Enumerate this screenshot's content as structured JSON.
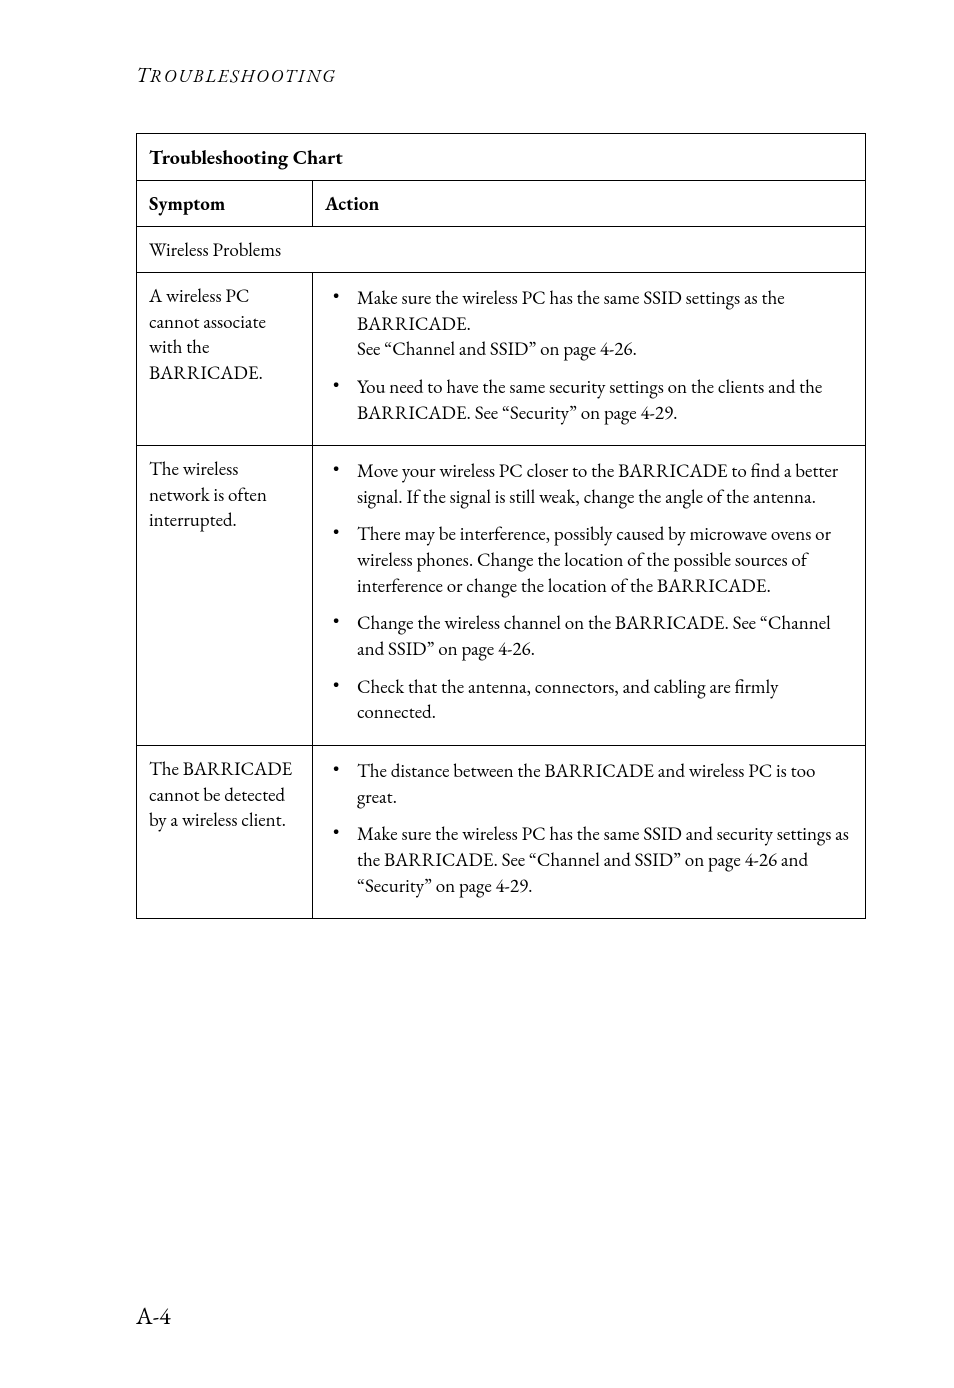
{
  "running_head_first": "T",
  "running_head_rest": "ROUBLESHOOTING",
  "chart_title": "Troubleshooting Chart",
  "col_symptom": "Symptom",
  "col_action": "Action",
  "section_wireless": "Wireless Problems",
  "rows": [
    {
      "symptom": "A wireless PC cannot associate with the BARRICADE.",
      "actions": [
        "Make sure the wireless PC has the same SSID settings as the BARRICADE.\nSee “Channel and SSID” on page 4-26.",
        "You need to have the same security settings on the clients and the BARRICADE. See “Security” on page 4-29."
      ]
    },
    {
      "symptom": "The wireless network is often interrupted.",
      "actions": [
        "Move your wireless PC closer to the BARRICADE to find a better signal. If the signal is still weak, change the angle of the antenna.",
        "There may be interference, possibly caused by microwave ovens or wireless phones. Change the location of the possible sources of interference or change the location of the BARRICADE.",
        "Change the wireless channel on the BARRICADE. See “Channel and SSID” on page 4-26.",
        "Check that the antenna, connectors, and cabling are firmly connected."
      ]
    },
    {
      "symptom": "The BARRICADE cannot be detected by a wireless client.",
      "actions": [
        "The distance between the BARRICADE and wireless PC is too great.",
        "Make sure the wireless PC has the same SSID and security settings as the BARRICADE. See “Channel and SSID” on page 4-26 and “Security” on page 4-29."
      ]
    }
  ],
  "page_number": "A-4"
}
